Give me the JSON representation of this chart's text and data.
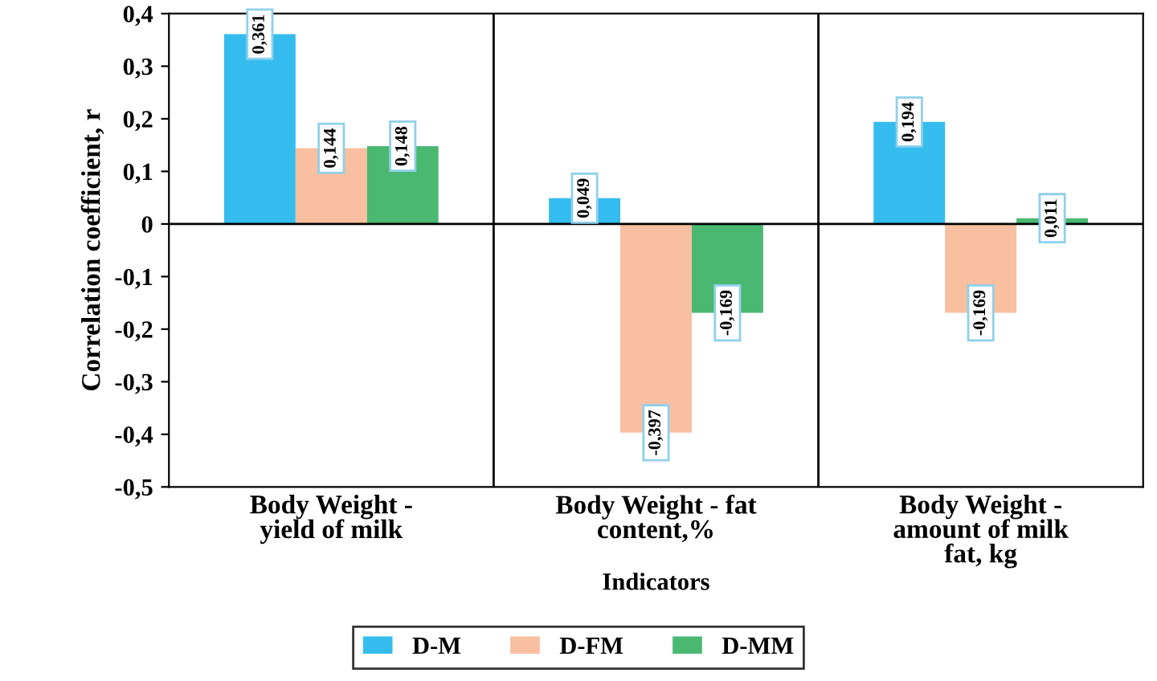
{
  "chart_data": {
    "type": "bar",
    "categories": [
      "Body Weight -\nyield of milk",
      "Body Weight - fat\ncontent,%",
      "Body Weight -\namount of milk\nfat, kg"
    ],
    "series": [
      {
        "name": "D-M",
        "color": "#35bcee",
        "values": [
          0.361,
          0.049,
          0.194
        ],
        "value_labels": [
          "0,361",
          "0,049",
          "0,194"
        ]
      },
      {
        "name": "D-FM",
        "color": "#f8bfa0",
        "values": [
          0.144,
          -0.397,
          -0.169
        ],
        "value_labels": [
          "0,144",
          "-0,397",
          "-0,169"
        ]
      },
      {
        "name": "D-MM",
        "color": "#4bb872",
        "values": [
          0.148,
          -0.169,
          0.011
        ],
        "value_labels": [
          "0,148",
          "-0,169",
          "0,011"
        ]
      }
    ],
    "ylim": [
      -0.5,
      0.4
    ],
    "yticks": [
      {
        "value": -0.5,
        "label": "-0,5"
      },
      {
        "value": -0.4,
        "label": "-0,4"
      },
      {
        "value": -0.3,
        "label": "-0,3"
      },
      {
        "value": -0.2,
        "label": "-0,2"
      },
      {
        "value": -0.1,
        "label": "-0,1"
      },
      0,
      {
        "value": 0.1,
        "label": "0,1"
      },
      {
        "value": 0.2,
        "label": "0,2"
      },
      {
        "value": 0.3,
        "label": "0,3"
      },
      {
        "value": 0.4,
        "label": "0,4"
      }
    ],
    "xlabel": "Indicators",
    "ylabel": "Correlation coefficient, r",
    "grid": false,
    "ref_lines": [
      {
        "axis": "y",
        "value": 0,
        "color": "#000000"
      }
    ],
    "legend": "bottom"
  }
}
